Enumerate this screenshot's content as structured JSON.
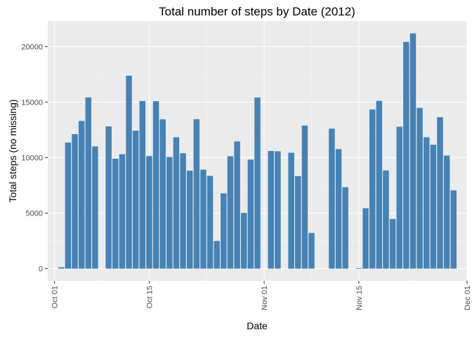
{
  "chart_data": {
    "type": "bar",
    "title": "Total number of steps by Date (2012)",
    "xlabel": "Date",
    "ylabel": "Total steps (no missing)",
    "x_type": "date",
    "x_range": [
      "2012-09-30",
      "2012-12-01"
    ],
    "ylim": [
      -1100,
      22300
    ],
    "x_ticks": [
      {
        "date": "2012-10-01",
        "label": "Oct 01"
      },
      {
        "date": "2012-10-15",
        "label": "Oct 15"
      },
      {
        "date": "2012-11-01",
        "label": "Nov 01"
      },
      {
        "date": "2012-11-15",
        "label": "Nov 15"
      },
      {
        "date": "2012-12-01",
        "label": "Dec 01"
      }
    ],
    "y_ticks": [
      0,
      5000,
      10000,
      15000,
      20000
    ],
    "y_tick_labels": [
      "0",
      "5000",
      "10000",
      "15000",
      "20000"
    ],
    "bar_color": "#4682B4",
    "panel_color": "#EBEBEB",
    "grid": true,
    "series": [
      {
        "dates": [
          "2012-10-02",
          "2012-10-03",
          "2012-10-04",
          "2012-10-05",
          "2012-10-06",
          "2012-10-07",
          "2012-10-09",
          "2012-10-10",
          "2012-10-11",
          "2012-10-12",
          "2012-10-13",
          "2012-10-14",
          "2012-10-15",
          "2012-10-16",
          "2012-10-17",
          "2012-10-18",
          "2012-10-19",
          "2012-10-20",
          "2012-10-21",
          "2012-10-22",
          "2012-10-23",
          "2012-10-24",
          "2012-10-25",
          "2012-10-26",
          "2012-10-27",
          "2012-10-28",
          "2012-10-29",
          "2012-10-30",
          "2012-10-31",
          "2012-11-02",
          "2012-11-03",
          "2012-11-05",
          "2012-11-06",
          "2012-11-07",
          "2012-11-08",
          "2012-11-11",
          "2012-11-12",
          "2012-11-13",
          "2012-11-15",
          "2012-11-16",
          "2012-11-17",
          "2012-11-18",
          "2012-11-19",
          "2012-11-20",
          "2012-11-21",
          "2012-11-22",
          "2012-11-23",
          "2012-11-24",
          "2012-11-25",
          "2012-11-26",
          "2012-11-27",
          "2012-11-28",
          "2012-11-29"
        ],
        "values": [
          126,
          11352,
          12116,
          13294,
          15420,
          11015,
          12811,
          9900,
          10304,
          17382,
          12426,
          15098,
          10139,
          15084,
          13452,
          10056,
          11829,
          10395,
          8821,
          13460,
          8918,
          8355,
          2492,
          6778,
          10119,
          11458,
          5018,
          9819,
          15414,
          10600,
          10571,
          10439,
          8334,
          12883,
          3219,
          12608,
          10765,
          7336,
          41,
          5441,
          14339,
          15110,
          8841,
          4472,
          12787,
          20427,
          21194,
          14478,
          11834,
          11162,
          13646,
          10183,
          7047
        ]
      }
    ]
  }
}
